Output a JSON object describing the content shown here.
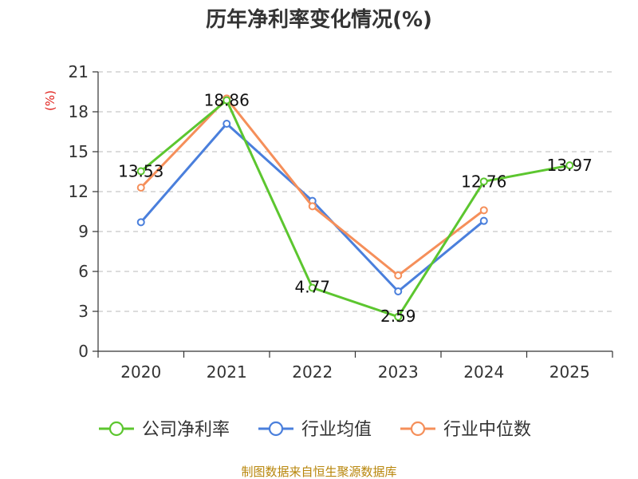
{
  "chart_data": {
    "type": "line",
    "title": "历年净利率变化情况(%)",
    "unit_label": "(%)",
    "categories": [
      "2020",
      "2021",
      "2022",
      "2023",
      "2024",
      "2025"
    ],
    "ylim": [
      0,
      21
    ],
    "yticks": [
      0,
      3,
      6,
      9,
      12,
      15,
      18,
      21
    ],
    "grid": true,
    "legend_position": "bottom",
    "series": [
      {
        "name": "公司净利率",
        "color": "#5cc62f",
        "values": [
          13.53,
          18.86,
          4.77,
          2.59,
          12.76,
          13.97
        ],
        "labels": [
          "13.53",
          "18.86",
          "4.77",
          "2.59",
          "12.76",
          "13.97"
        ]
      },
      {
        "name": "行业均值",
        "color": "#4a7fdc",
        "values": [
          9.7,
          17.1,
          11.3,
          4.5,
          9.8,
          null
        ]
      },
      {
        "name": "行业中位数",
        "color": "#f58f5a",
        "values": [
          12.3,
          19.0,
          10.9,
          5.7,
          10.6,
          null
        ]
      }
    ]
  },
  "footer": {
    "source": "制图数据来自恒生聚源数据库"
  }
}
